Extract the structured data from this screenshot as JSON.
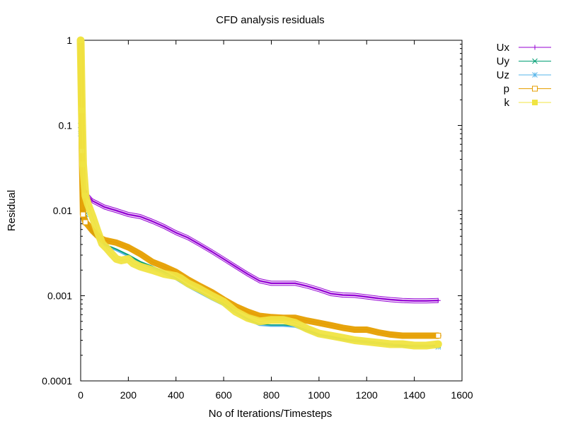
{
  "chart_data": {
    "type": "line",
    "title": "CFD analysis residuals",
    "xlabel": "No of Iterations/Timesteps",
    "ylabel": "Residual",
    "xlim": [
      0,
      1600
    ],
    "ylim": [
      0.0001,
      1
    ],
    "yscale": "log",
    "grid": false,
    "legend_position": "top-right, outside plot",
    "x_ticks": [
      "0",
      "200",
      "400",
      "600",
      "800",
      "1000",
      "1200",
      "1400",
      "1600"
    ],
    "y_ticks": [
      "0.0001",
      "0.001",
      "0.01",
      "0.1",
      "1"
    ],
    "series": [
      {
        "name": "Ux",
        "color": "#9400d3",
        "marker": "plus",
        "x": [
          0,
          5,
          10,
          20,
          30,
          50,
          100,
          150,
          200,
          250,
          300,
          350,
          400,
          450,
          500,
          550,
          600,
          650,
          700,
          750,
          800,
          850,
          900,
          950,
          1000,
          1050,
          1100,
          1150,
          1200,
          1250,
          1300,
          1350,
          1400,
          1450,
          1500
        ],
        "y": [
          0.4,
          0.1,
          0.03,
          0.017,
          0.015,
          0.013,
          0.011,
          0.01,
          0.009,
          0.0085,
          0.0075,
          0.0065,
          0.0055,
          0.0048,
          0.004,
          0.0033,
          0.0027,
          0.0022,
          0.0018,
          0.0015,
          0.0014,
          0.0014,
          0.0014,
          0.0013,
          0.00118,
          0.00106,
          0.00102,
          0.00101,
          0.00097,
          0.00093,
          0.0009,
          0.00088,
          0.00087,
          0.00087,
          0.00088
        ]
      },
      {
        "name": "Uy",
        "color": "#009e73",
        "marker": "cross",
        "x": [
          0,
          5,
          10,
          20,
          30,
          50,
          80,
          100,
          150,
          200,
          250,
          300,
          350,
          400,
          450,
          500,
          550,
          600,
          650,
          700,
          750,
          800,
          850,
          900,
          950,
          1000,
          1050,
          1100,
          1150,
          1200,
          1250,
          1300,
          1350,
          1400,
          1450,
          1500
        ],
        "y": [
          0.1,
          0.05,
          0.02,
          0.009,
          0.007,
          0.0055,
          0.0045,
          0.004,
          0.0035,
          0.003,
          0.0025,
          0.0022,
          0.0019,
          0.0016,
          0.0013,
          0.0011,
          0.00093,
          0.0008,
          0.00065,
          0.00053,
          0.00046,
          0.00045,
          0.00045,
          0.00044,
          0.00039,
          0.00035,
          0.00033,
          0.00031,
          0.0003,
          0.00029,
          0.00028,
          0.00027,
          0.00026,
          0.00026,
          0.00026,
          0.00026
        ]
      },
      {
        "name": "Uz",
        "color": "#56b4e9",
        "marker": "star",
        "x": [
          0,
          5,
          10,
          20,
          30,
          50,
          80,
          100,
          150,
          200,
          250,
          300,
          350,
          400,
          450,
          500,
          550,
          600,
          650,
          700,
          750,
          800,
          850,
          900,
          950,
          1000,
          1050,
          1100,
          1150,
          1200,
          1250,
          1300,
          1350,
          1400,
          1450,
          1500
        ],
        "y": [
          0.08,
          0.04,
          0.018,
          0.0085,
          0.0068,
          0.0053,
          0.0044,
          0.0039,
          0.0034,
          0.0029,
          0.0024,
          0.0021,
          0.0018,
          0.00155,
          0.00127,
          0.00107,
          0.0009,
          0.00077,
          0.00063,
          0.00052,
          0.00045,
          0.00044,
          0.00044,
          0.00043,
          0.00038,
          0.00034,
          0.00032,
          0.0003,
          0.00029,
          0.00028,
          0.00027,
          0.00026,
          0.00025,
          0.00025,
          0.00025,
          0.00025
        ]
      },
      {
        "name": "p",
        "color": "#e69f00",
        "marker": "open-square",
        "x": [
          0,
          5,
          10,
          20,
          30,
          50,
          80,
          100,
          150,
          200,
          250,
          300,
          350,
          400,
          450,
          500,
          550,
          600,
          650,
          700,
          750,
          800,
          850,
          900,
          950,
          1000,
          1050,
          1100,
          1150,
          1200,
          1250,
          1300,
          1350,
          1400,
          1450,
          1500
        ],
        "y": [
          1.0,
          0.05,
          0.009,
          0.0073,
          0.0068,
          0.0058,
          0.0048,
          0.0045,
          0.0042,
          0.0037,
          0.0031,
          0.0025,
          0.0022,
          0.0019,
          0.00155,
          0.0013,
          0.0011,
          0.0009,
          0.00075,
          0.00065,
          0.00058,
          0.00056,
          0.00055,
          0.00055,
          0.00051,
          0.00048,
          0.00045,
          0.00042,
          0.0004,
          0.0004,
          0.00037,
          0.00035,
          0.00034,
          0.00034,
          0.00034,
          0.00034
        ]
      },
      {
        "name": "k",
        "color": "#f0e442",
        "marker": "filled-square",
        "x": [
          0,
          5,
          10,
          20,
          30,
          50,
          70,
          90,
          110,
          130,
          150,
          170,
          200,
          220,
          250,
          300,
          350,
          400,
          420,
          450,
          500,
          550,
          600,
          650,
          700,
          750,
          800,
          850,
          900,
          950,
          1000,
          1050,
          1100,
          1150,
          1200,
          1250,
          1300,
          1350,
          1400,
          1450,
          1500
        ],
        "y": [
          1.0,
          0.15,
          0.035,
          0.015,
          0.012,
          0.0085,
          0.0058,
          0.0041,
          0.0036,
          0.0031,
          0.0027,
          0.0026,
          0.0027,
          0.0024,
          0.0022,
          0.002,
          0.0018,
          0.0017,
          0.0016,
          0.0014,
          0.0012,
          0.001,
          0.00085,
          0.00065,
          0.00055,
          0.0005,
          0.00052,
          0.00052,
          0.00048,
          0.00041,
          0.00036,
          0.00034,
          0.00032,
          0.0003,
          0.00029,
          0.00028,
          0.00027,
          0.00027,
          0.00026,
          0.00026,
          0.00027
        ]
      }
    ]
  }
}
